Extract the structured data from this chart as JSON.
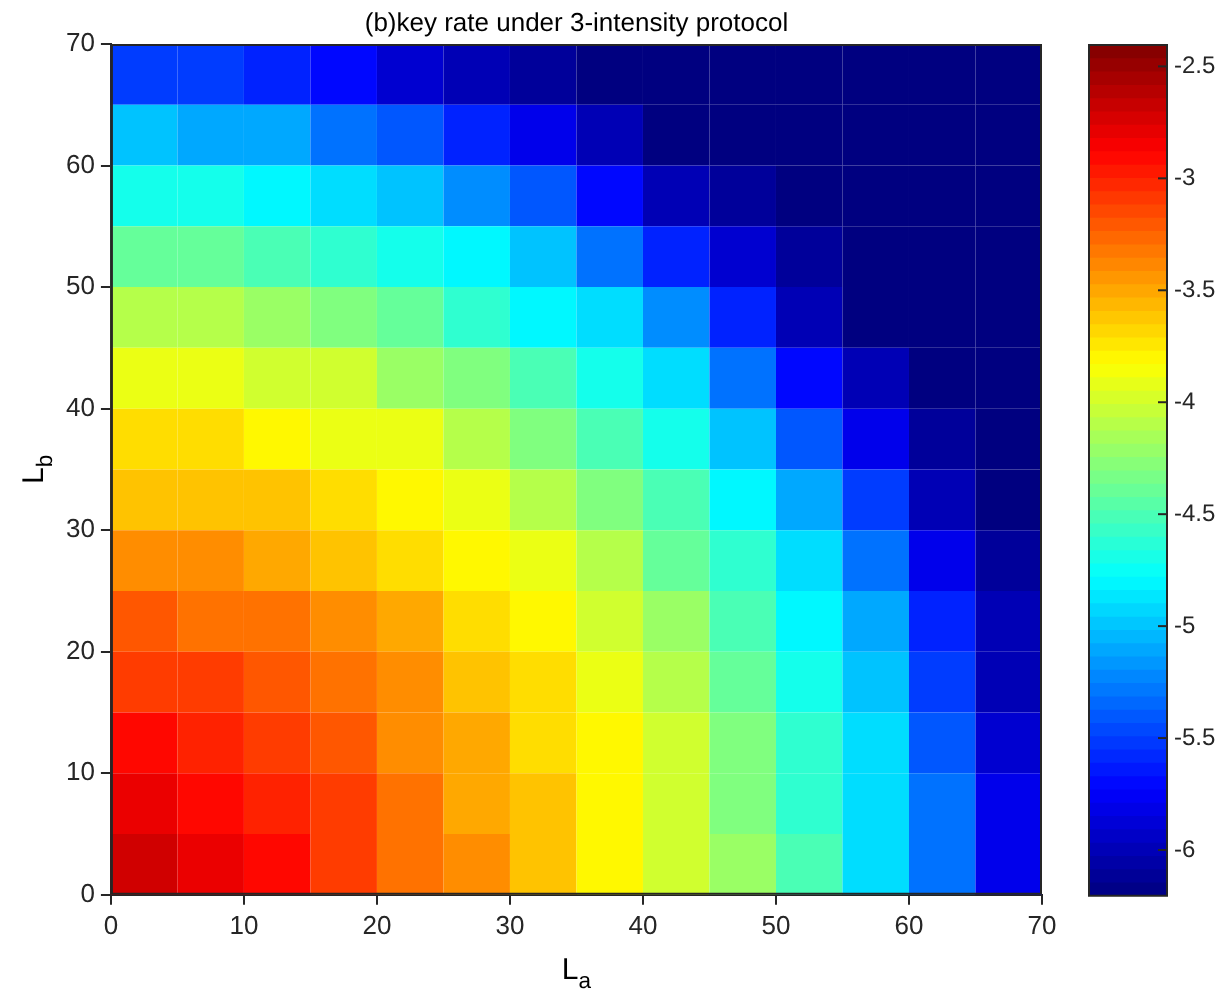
{
  "chart_data": {
    "type": "heatmap",
    "title": "(b)key rate under 3-intensity protocol",
    "xlabel": "L$_{a}$",
    "ylabel": "L$_{b}$",
    "xlim": [
      0,
      70
    ],
    "ylim": [
      0,
      70
    ],
    "xticks": [
      0,
      10,
      20,
      30,
      40,
      50,
      60,
      70
    ],
    "yticks": [
      0,
      10,
      20,
      30,
      40,
      50,
      60,
      70
    ],
    "clim": [
      -6.2,
      -2.4
    ],
    "cticks": [
      -6,
      -5.5,
      -5,
      -4.5,
      -4,
      -3.5,
      -3,
      -2.5
    ],
    "grid": false,
    "cells": [
      [
        -5.5,
        -5.5,
        -5.6,
        -5.7,
        -5.9,
        -6.0,
        -6.1,
        -6.2,
        -6.2,
        -6.2,
        -6.2,
        -6.2,
        -6.2,
        -6.2
      ],
      [
        -5.0,
        -5.1,
        -5.1,
        -5.3,
        -5.4,
        -5.6,
        -5.8,
        -6.0,
        -6.2,
        -6.2,
        -6.2,
        -6.2,
        -6.2,
        -6.2
      ],
      [
        -4.7,
        -4.7,
        -4.8,
        -4.9,
        -5.0,
        -5.2,
        -5.4,
        -5.7,
        -6.0,
        -6.1,
        -6.2,
        -6.2,
        -6.2,
        -6.2
      ],
      [
        -4.4,
        -4.4,
        -4.5,
        -4.6,
        -4.7,
        -4.8,
        -5.0,
        -5.3,
        -5.6,
        -5.9,
        -6.1,
        -6.2,
        -6.2,
        -6.2
      ],
      [
        -4.1,
        -4.1,
        -4.2,
        -4.3,
        -4.4,
        -4.6,
        -4.8,
        -4.9,
        -5.2,
        -5.6,
        -6.0,
        -6.2,
        -6.2,
        -6.2
      ],
      [
        -3.9,
        -3.9,
        -4.0,
        -4.0,
        -4.2,
        -4.3,
        -4.5,
        -4.7,
        -4.9,
        -5.3,
        -5.7,
        -6.0,
        -6.2,
        -6.2
      ],
      [
        -3.7,
        -3.7,
        -3.8,
        -3.9,
        -3.9,
        -4.1,
        -4.3,
        -4.5,
        -4.7,
        -5.0,
        -5.4,
        -5.8,
        -6.1,
        -6.2
      ],
      [
        -3.6,
        -3.6,
        -3.6,
        -3.7,
        -3.8,
        -3.9,
        -4.1,
        -4.3,
        -4.5,
        -4.8,
        -5.1,
        -5.5,
        -6.0,
        -6.2
      ],
      [
        -3.4,
        -3.4,
        -3.5,
        -3.6,
        -3.7,
        -3.8,
        -3.9,
        -4.1,
        -4.4,
        -4.6,
        -4.9,
        -5.3,
        -5.8,
        -6.1
      ],
      [
        -3.2,
        -3.3,
        -3.3,
        -3.4,
        -3.5,
        -3.7,
        -3.8,
        -4.0,
        -4.2,
        -4.5,
        -4.8,
        -5.1,
        -5.6,
        -6.0
      ],
      [
        -3.1,
        -3.1,
        -3.2,
        -3.3,
        -3.4,
        -3.6,
        -3.7,
        -3.9,
        -4.1,
        -4.4,
        -4.7,
        -5.0,
        -5.5,
        -6.0
      ],
      [
        -2.9,
        -3.0,
        -3.1,
        -3.2,
        -3.4,
        -3.5,
        -3.7,
        -3.8,
        -4.0,
        -4.3,
        -4.6,
        -4.9,
        -5.4,
        -5.9
      ],
      [
        -2.8,
        -2.9,
        -3.0,
        -3.1,
        -3.3,
        -3.5,
        -3.6,
        -3.8,
        -4.0,
        -4.3,
        -4.6,
        -4.9,
        -5.3,
        -5.8
      ],
      [
        -2.7,
        -2.8,
        -2.9,
        -3.1,
        -3.3,
        -3.4,
        -3.6,
        -3.8,
        -4.0,
        -4.2,
        -4.5,
        -4.9,
        -5.3,
        -5.8
      ]
    ]
  }
}
